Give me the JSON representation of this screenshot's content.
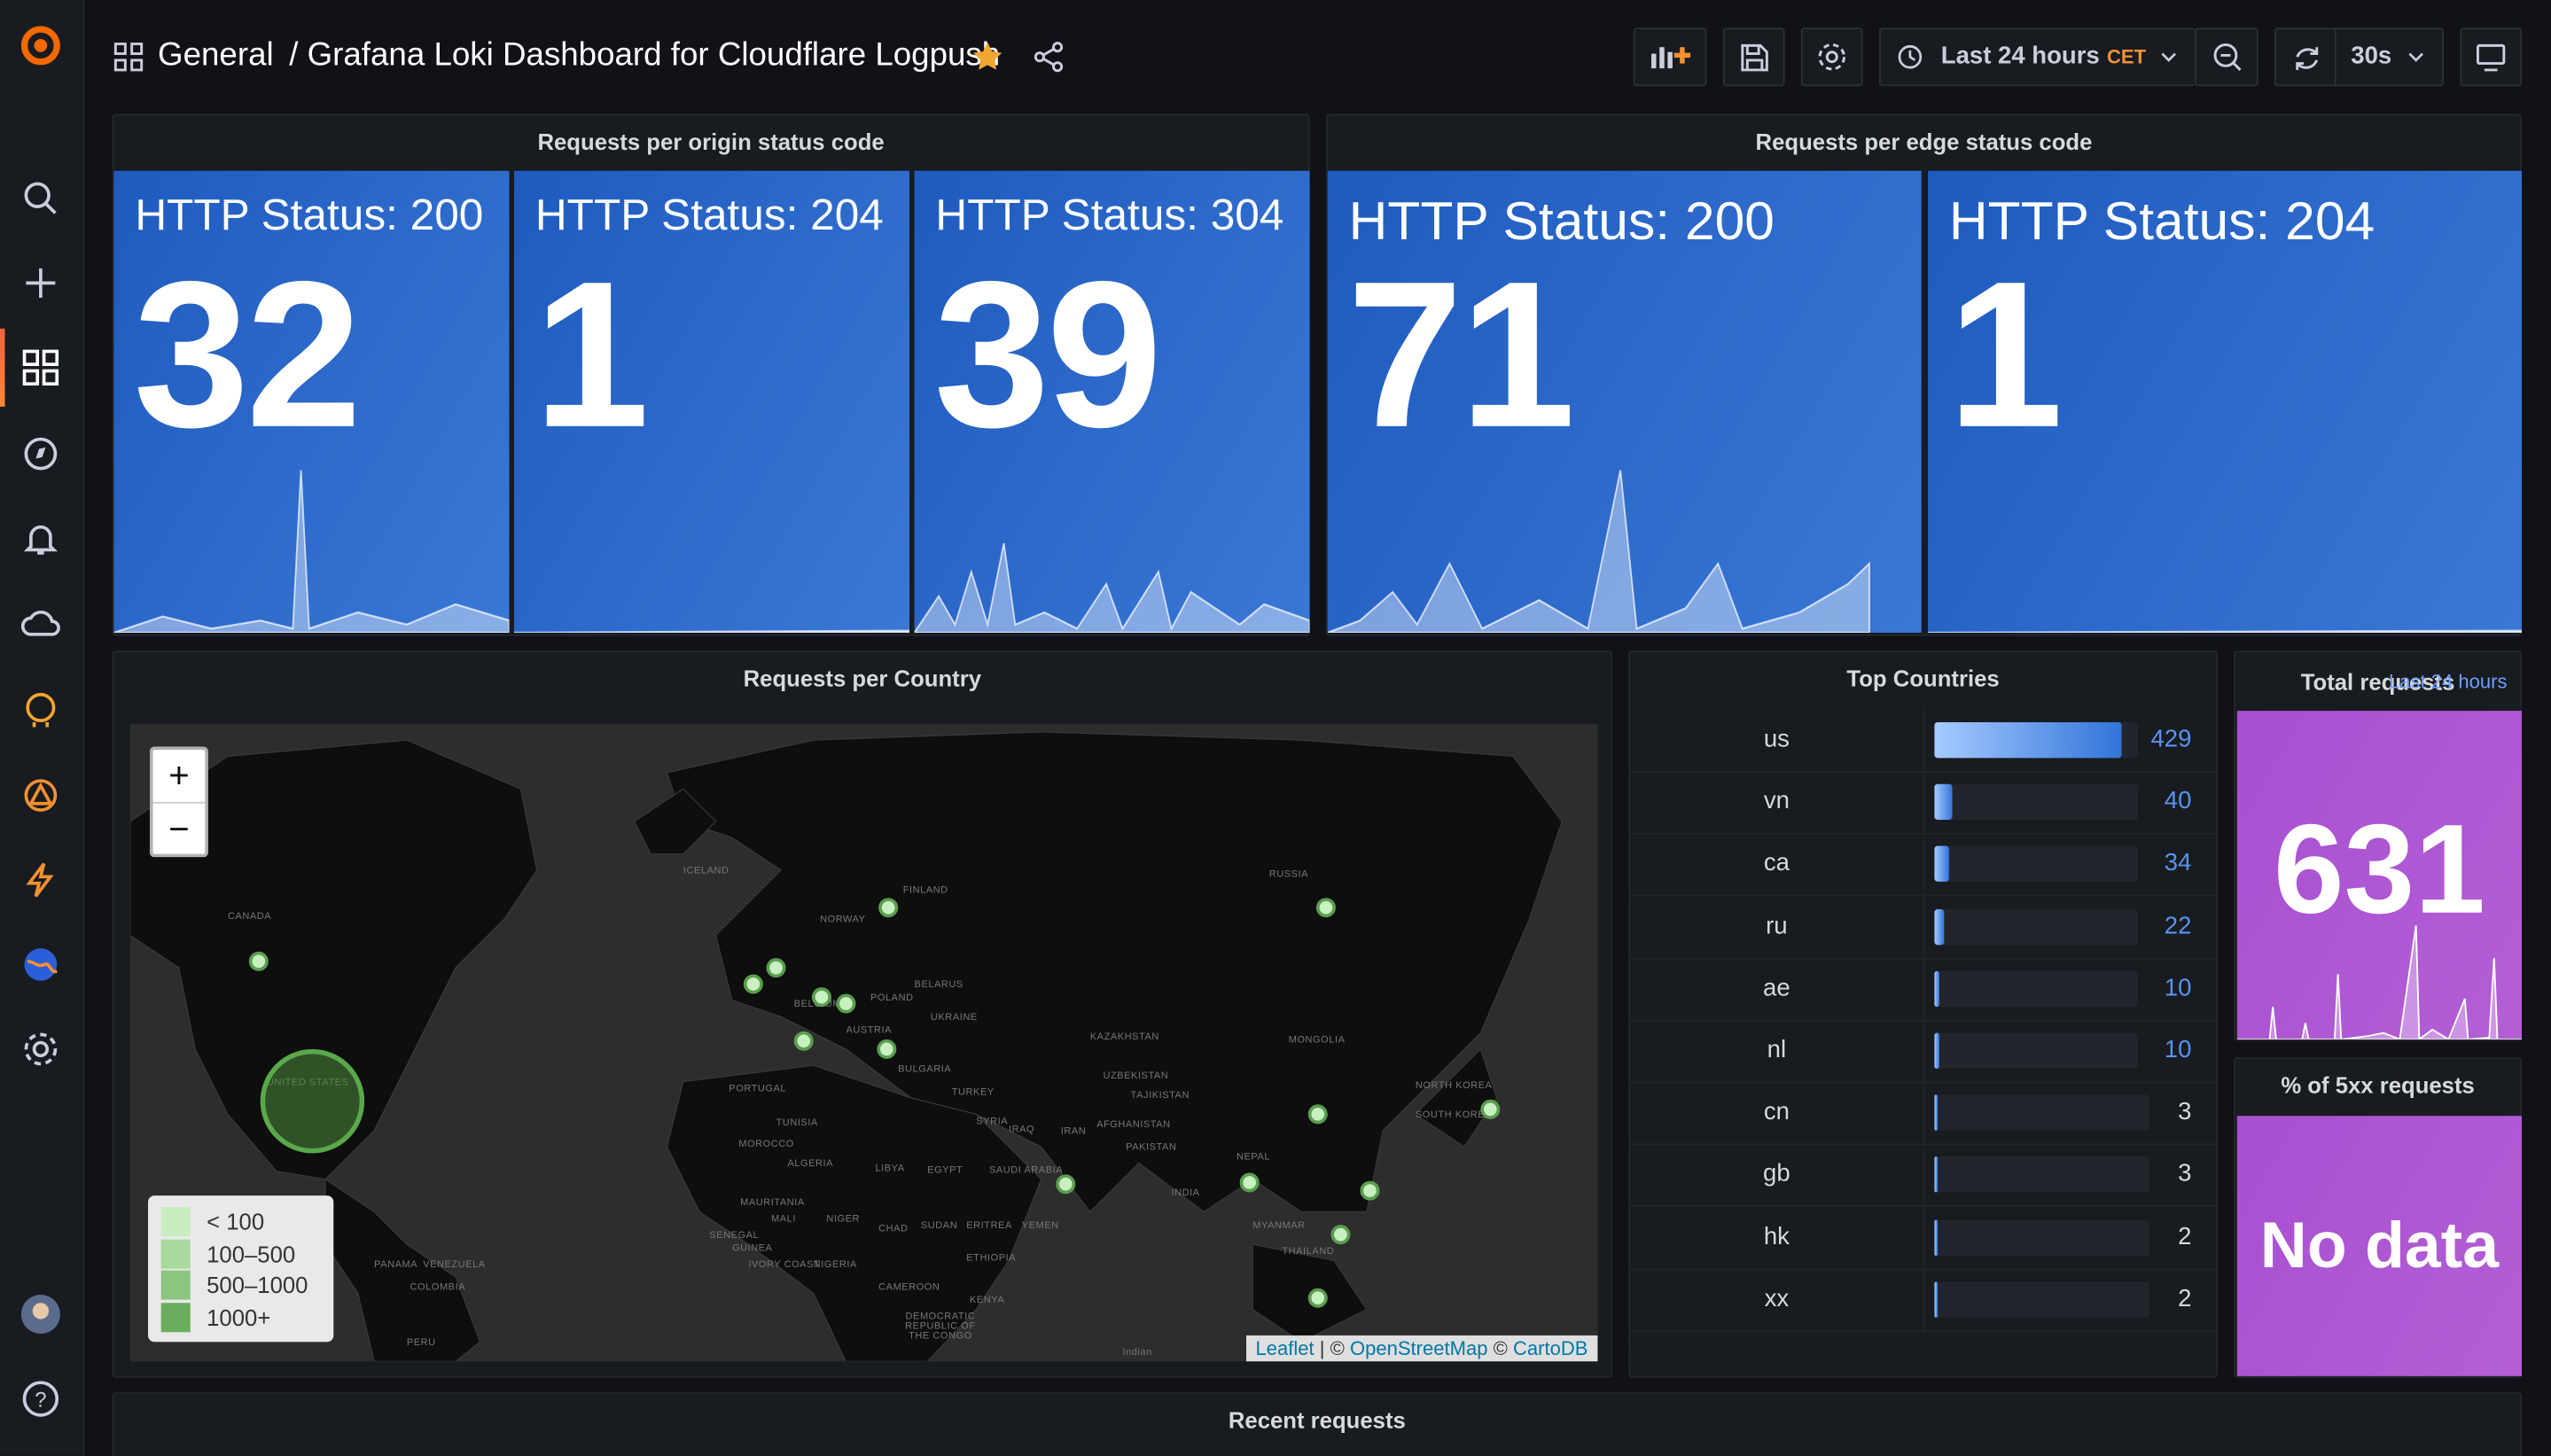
{
  "header": {
    "folder": "General",
    "title": "/ Grafana Loki Dashboard for Cloudflare Logpush",
    "time_range": "Last 24 hours",
    "timezone": "CET",
    "refresh": "30s"
  },
  "origin_panel": {
    "title": "Requests per origin status code",
    "stats": [
      {
        "label": "HTTP Status: 200",
        "value": 32
      },
      {
        "label": "HTTP Status: 204",
        "value": 1
      },
      {
        "label": "HTTP Status: 304",
        "value": 39
      }
    ]
  },
  "edge_panel": {
    "title": "Requests per edge status code",
    "stats": [
      {
        "label": "HTTP Status: 200",
        "value": 71
      },
      {
        "label": "HTTP Status: 204",
        "value": 1
      }
    ]
  },
  "map_panel": {
    "title": "Requests per Country",
    "zoom_in": "+",
    "zoom_out": "−",
    "legend": [
      "< 100",
      "100–500",
      "500–1000",
      "1000+"
    ],
    "attribution": {
      "leaflet": "Leaflet",
      "separator": "| ©",
      "osm": "OpenStreetMap",
      "copy": "©",
      "carto": "CartoDB"
    },
    "labels": [
      "CANADA",
      "UNITED STATES",
      "RUSSIA",
      "ICELAND",
      "FINLAND",
      "NORWAY",
      "POLAND",
      "BELARUS",
      "UKRAINE",
      "BELGIUM",
      "AUSTRIA",
      "KAZAKHSTAN",
      "MONGOLIA",
      "PORTUGAL",
      "BULGARIA",
      "TURKEY",
      "UZBEKISTAN",
      "TAJIKISTAN",
      "TUNISIA",
      "SYRIA",
      "IRAQ",
      "IRAN",
      "AFGHANISTAN",
      "PAKISTAN",
      "MOROCCO",
      "ALGERIA",
      "LIBYA",
      "EGYPT",
      "SAUDI ARABIA",
      "NEPAL",
      "INDIA",
      "NORTH KOREA",
      "SOUTH KOREA",
      "MAURITANIA",
      "MALI",
      "NIGER",
      "CHAD",
      "SUDAN",
      "ERITREA",
      "YEMEN",
      "SENEGAL",
      "GUINEA",
      "IVORY COAST",
      "NIGERIA",
      "ETHIOPIA",
      "CAMEROON",
      "KENYA",
      "DEMOCRATIC REPUBLIC OF THE CONGO",
      "MYANMAR",
      "THAILAND",
      "PANAMA",
      "VENEZUELA",
      "COLOMBIA",
      "PERU",
      "Indian"
    ]
  },
  "top_countries": {
    "title": "Top Countries",
    "rows": [
      {
        "country": "us",
        "count": 429
      },
      {
        "country": "vn",
        "count": 40
      },
      {
        "country": "ca",
        "count": 34
      },
      {
        "country": "ru",
        "count": 22
      },
      {
        "country": "ae",
        "count": 10
      },
      {
        "country": "nl",
        "count": 10
      },
      {
        "country": "cn",
        "count": 3
      },
      {
        "country": "gb",
        "count": 3
      },
      {
        "country": "hk",
        "count": 2
      },
      {
        "country": "xx",
        "count": 2
      }
    ]
  },
  "total_panel": {
    "title": "Total requests",
    "subtitle": "Last 24 hours",
    "value": 631
  },
  "errors_panel": {
    "title": "% of 5xx requests",
    "value": "No data"
  },
  "recent_panel": {
    "title": "Recent requests"
  }
}
